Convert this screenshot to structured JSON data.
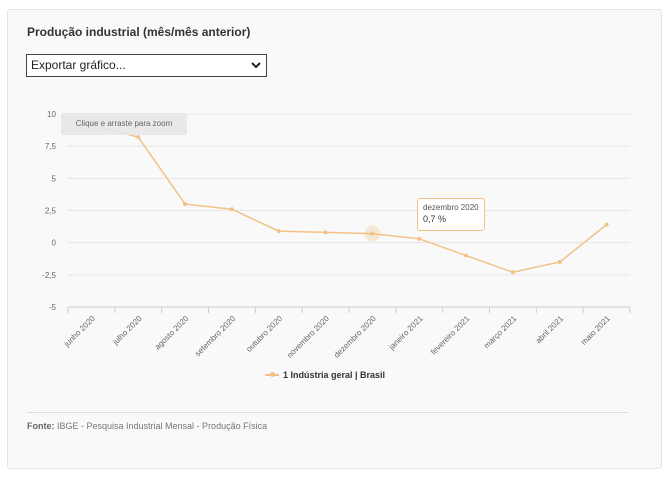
{
  "chart_data": {
    "type": "line",
    "title": "Produção industrial (mês/mês anterior)",
    "categories": [
      "junho 2020",
      "julho 2020",
      "agosto 2020",
      "setembro 2020",
      "outubro 2020",
      "novembro 2020",
      "dezembro 2020",
      "janeiro 2021",
      "fevereiro 2021",
      "março 2021",
      "abril 2021",
      "maio 2021"
    ],
    "series": [
      {
        "name": "1 Indústria geral | Brasil",
        "values": [
          9.2,
          8.2,
          3.0,
          2.6,
          0.9,
          0.8,
          0.7,
          0.3,
          -1.0,
          -2.3,
          -1.5,
          1.4
        ],
        "color": "#f2c185"
      }
    ],
    "yticks": [
      "10",
      "7,5",
      "5",
      "2,5",
      "0",
      "-2,5",
      "-5"
    ],
    "ytick_values": [
      10,
      7.5,
      5,
      2.5,
      0,
      -2.5,
      -5
    ],
    "ylim": [
      -5,
      10
    ],
    "grid": true,
    "legend": "bottom-center"
  },
  "export": {
    "label": "Exportar gráfico...",
    "icon": "chevron-down-icon"
  },
  "zoom_hint": "Clique e arraste para zoom",
  "tooltip": {
    "category": "dezembro 2020",
    "value": "0,7 %"
  },
  "legend": {
    "label": "1 Indústria geral | Brasil"
  },
  "source": {
    "label": "Fonte:",
    "text": " IBGE - Pesquisa Industrial Mensal - Produção Física"
  }
}
